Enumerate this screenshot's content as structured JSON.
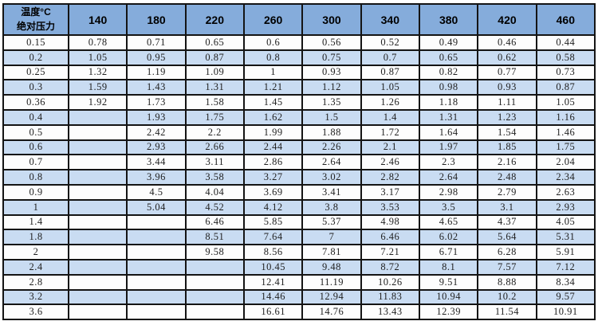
{
  "colors": {
    "header_bg": "#85acdb",
    "stripe_bg": "#c9dcf2",
    "border": "#141414",
    "text": "#222222"
  },
  "chart_data": {
    "type": "table",
    "title": "",
    "corner_header": [
      "温度°C",
      "绝对压力"
    ],
    "columns": [
      "140",
      "180",
      "220",
      "260",
      "300",
      "340",
      "380",
      "420",
      "460"
    ],
    "rows": [
      {
        "pressure": "0.15",
        "values": [
          "0.78",
          "0.71",
          "0.65",
          "0.6",
          "0.56",
          "0.52",
          "0.49",
          "0.46",
          "0.44"
        ]
      },
      {
        "pressure": "0.2",
        "values": [
          "1.05",
          "0.95",
          "0.87",
          "0.8",
          "0.75",
          "0.7",
          "0.65",
          "0.62",
          "0.58"
        ]
      },
      {
        "pressure": "0.25",
        "values": [
          "1.32",
          "1.19",
          "1.09",
          "1",
          "0.93",
          "0.87",
          "0.82",
          "0.77",
          "0.73"
        ]
      },
      {
        "pressure": "0.3",
        "values": [
          "1.59",
          "1.43",
          "1.31",
          "1.21",
          "1.12",
          "1.05",
          "0.98",
          "0.93",
          "0.87"
        ]
      },
      {
        "pressure": "0.36",
        "values": [
          "1.92",
          "1.73",
          "1.58",
          "1.45",
          "1.35",
          "1.26",
          "1.18",
          "1.11",
          "1.05"
        ]
      },
      {
        "pressure": "0.4",
        "values": [
          "",
          "1.93",
          "1.75",
          "1.62",
          "1.5",
          "1.4",
          "1.31",
          "1.23",
          "1.16"
        ]
      },
      {
        "pressure": "0.5",
        "values": [
          "",
          "2.42",
          "2.2",
          "1.99",
          "1.88",
          "1.72",
          "1.64",
          "1.54",
          "1.46"
        ]
      },
      {
        "pressure": "0.6",
        "values": [
          "",
          "2.93",
          "2.66",
          "2.44",
          "2.26",
          "2.1",
          "1.97",
          "1.85",
          "1.75"
        ]
      },
      {
        "pressure": "0.7",
        "values": [
          "",
          "3.44",
          "3.11",
          "2.86",
          "2.64",
          "2.46",
          "2.3",
          "2.16",
          "2.04"
        ]
      },
      {
        "pressure": "0.8",
        "values": [
          "",
          "3.96",
          "3.58",
          "3.27",
          "3.02",
          "2.82",
          "2.64",
          "2.48",
          "2.34"
        ]
      },
      {
        "pressure": "0.9",
        "values": [
          "",
          "4.5",
          "4.04",
          "3.69",
          "3.41",
          "3.17",
          "2.98",
          "2.79",
          "2.63"
        ]
      },
      {
        "pressure": "1",
        "values": [
          "",
          "5.04",
          "4.52",
          "4.12",
          "3.8",
          "3.53",
          "3.5",
          "3.1",
          "2.93"
        ]
      },
      {
        "pressure": "1.4",
        "values": [
          "",
          "",
          "6.46",
          "5.85",
          "5.37",
          "4.98",
          "4.65",
          "4.37",
          "4.05"
        ]
      },
      {
        "pressure": "1.8",
        "values": [
          "",
          "",
          "8.51",
          "7.64",
          "7",
          "6.46",
          "6.02",
          "5.64",
          "5.31"
        ]
      },
      {
        "pressure": "2",
        "values": [
          "",
          "",
          "9.58",
          "8.56",
          "7.81",
          "7.21",
          "6.71",
          "6.28",
          "5.91"
        ]
      },
      {
        "pressure": "2.4",
        "values": [
          "",
          "",
          "",
          "10.45",
          "9.48",
          "8.72",
          "8.1",
          "7.57",
          "7.12"
        ]
      },
      {
        "pressure": "2.8",
        "values": [
          "",
          "",
          "",
          "12.41",
          "11.19",
          "10.26",
          "9.51",
          "8.88",
          "8.34"
        ]
      },
      {
        "pressure": "3.2",
        "values": [
          "",
          "",
          "",
          "14.46",
          "12.94",
          "11.83",
          "10.94",
          "10.2",
          "9.57"
        ]
      },
      {
        "pressure": "3.6",
        "values": [
          "",
          "",
          "",
          "16.61",
          "14.76",
          "13.43",
          "12.39",
          "11.54",
          "10.91"
        ]
      }
    ]
  }
}
